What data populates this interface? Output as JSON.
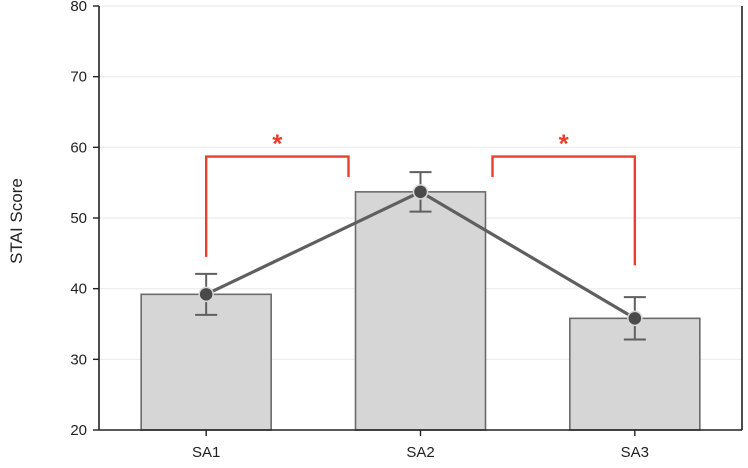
{
  "chart_data": {
    "type": "bar",
    "categories": [
      "SA1",
      "SA2",
      "SA3"
    ],
    "values": [
      39.2,
      53.7,
      35.8
    ],
    "error": [
      2.9,
      2.8,
      3.0
    ],
    "ylabel": "STAI Score",
    "xlabel": "",
    "ylim": [
      20,
      80
    ],
    "yticks": [
      20,
      30,
      40,
      50,
      60,
      70,
      80
    ],
    "grid": true,
    "overlay_line": true,
    "significance": [
      {
        "from": "SA1",
        "to": "SA2",
        "label": "*"
      },
      {
        "from": "SA2",
        "to": "SA3",
        "label": "*"
      }
    ],
    "colors": {
      "bar_fill": "#d6d6d6",
      "bar_stroke": "#6b6b6b",
      "line": "#5f5f5f",
      "marker": "#4a4a4a",
      "significance": "#e8402a",
      "grid": "#ebebeb",
      "axis": "#222222"
    }
  }
}
